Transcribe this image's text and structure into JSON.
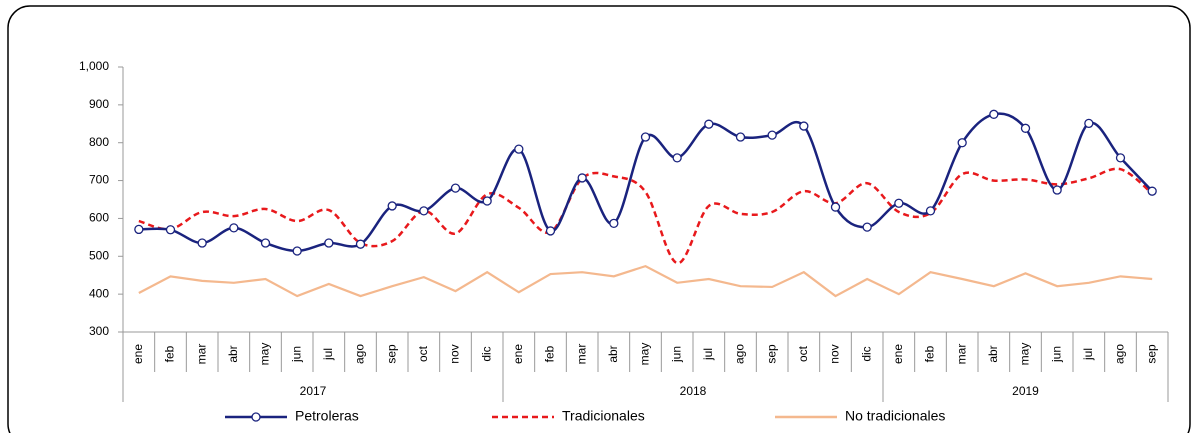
{
  "chart_data": {
    "type": "line",
    "groups": [
      {
        "name": "2017",
        "categories": [
          "ene",
          "feb",
          "mar",
          "abr",
          "may",
          "jun",
          "jul",
          "ago",
          "sep",
          "oct",
          "nov",
          "dic"
        ]
      },
      {
        "name": "2018",
        "categories": [
          "ene",
          "feb",
          "mar",
          "abr",
          "may",
          "jun",
          "jul",
          "ago",
          "sep",
          "oct",
          "nov",
          "dic"
        ]
      },
      {
        "name": "2019",
        "categories": [
          "ene",
          "feb",
          "mar",
          "abr",
          "may",
          "jun",
          "jul",
          "ago",
          "sep"
        ]
      }
    ],
    "series": [
      {
        "name": "Petroleras",
        "color": "#1a237e",
        "smooth": true,
        "markers": true,
        "dash": false,
        "values": [
          571,
          570,
          535,
          575,
          535,
          514,
          535,
          532,
          633,
          620,
          680,
          646,
          783,
          567,
          707,
          587,
          815,
          760,
          849,
          815,
          820,
          844,
          630,
          577,
          640,
          620,
          800,
          875,
          838,
          675,
          851,
          760,
          672
        ]
      },
      {
        "name": "Tradicionales",
        "color": "#e8191c",
        "smooth": true,
        "markers": false,
        "dash": true,
        "values": [
          593,
          572,
          617,
          606,
          625,
          593,
          622,
          535,
          540,
          620,
          560,
          664,
          628,
          564,
          706,
          711,
          670,
          482,
          633,
          612,
          617,
          672,
          640,
          693,
          617,
          614,
          717,
          700,
          703,
          690,
          706,
          730,
          666
        ]
      },
      {
        "name": "No tradicionales",
        "color": "#f4b88e",
        "smooth": false,
        "markers": false,
        "dash": false,
        "values": [
          403,
          447,
          435,
          430,
          440,
          395,
          427,
          395,
          421,
          445,
          408,
          458,
          405,
          453,
          458,
          447,
          474,
          430,
          440,
          421,
          419,
          458,
          395,
          440,
          400,
          458,
          440,
          421,
          455,
          421,
          430,
          447,
          440
        ]
      }
    ],
    "ylim": [
      300,
      1000
    ],
    "yticks": [
      300,
      400,
      500,
      600,
      700,
      800,
      900,
      {
        "value": 1000,
        "label": "1,000"
      }
    ],
    "grid": false,
    "legend": "bottom"
  }
}
